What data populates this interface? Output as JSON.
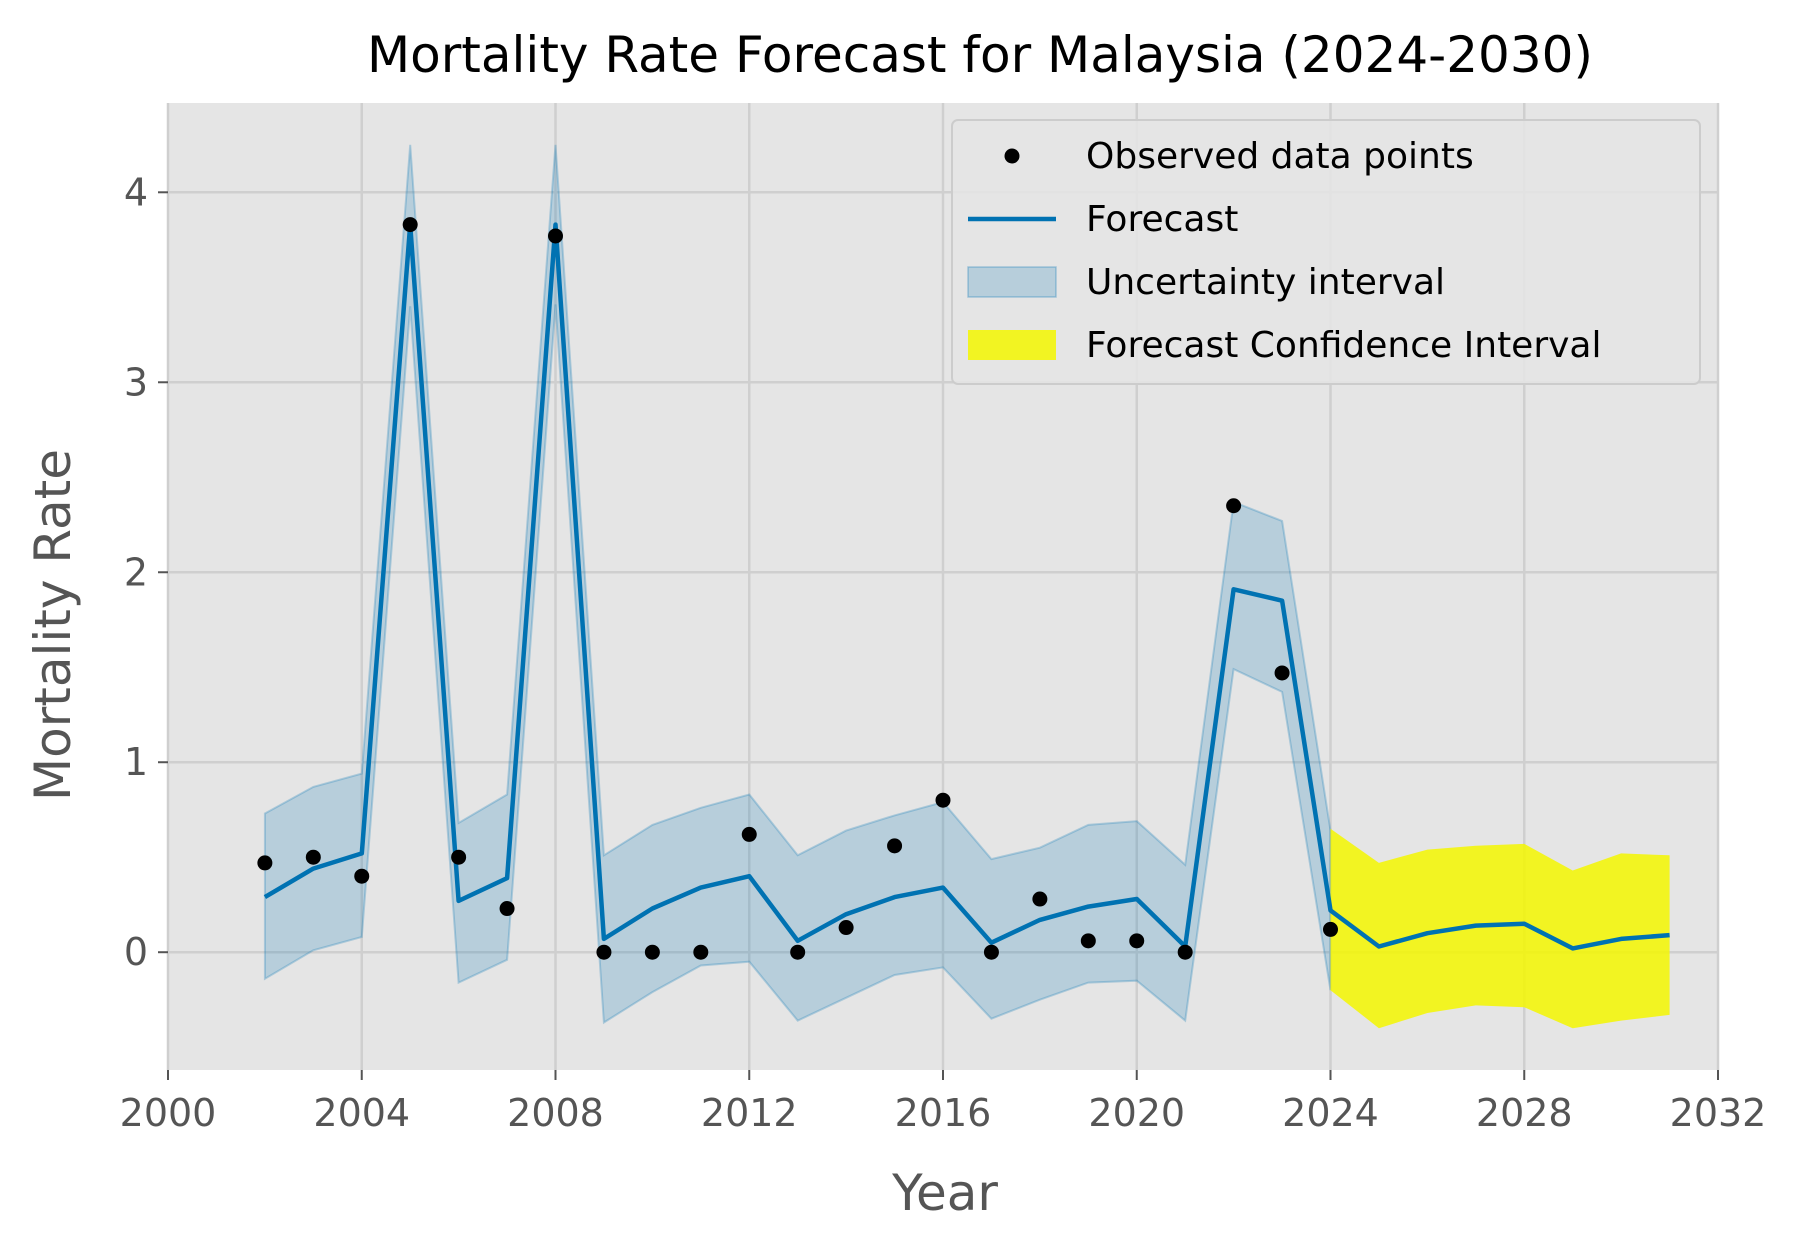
{
  "chart_data": {
    "type": "line",
    "title": "Mortality Rate Forecast for Malaysia (2024-2030)",
    "xlabel": "Year",
    "ylabel": "Mortality Rate",
    "xlim": [
      2000,
      2032
    ],
    "ylim": [
      -0.62,
      4.47
    ],
    "xticks": [
      2000,
      2004,
      2008,
      2012,
      2016,
      2020,
      2024,
      2028,
      2032
    ],
    "yticks": [
      0,
      1,
      2,
      3,
      4
    ],
    "grid": true,
    "legend_position": "top-right",
    "colors": {
      "background": "#e5e5e5",
      "grid": "#cfcfcf",
      "observed": "#000000",
      "forecast": "#0072b2",
      "uncertainty": "#0072b2",
      "forecast_ci": "#f5f700"
    },
    "observed": {
      "name": "Observed data points",
      "x": [
        2002,
        2003,
        2004,
        2005,
        2006,
        2007,
        2008,
        2009,
        2010,
        2011,
        2012,
        2013,
        2014,
        2015,
        2016,
        2017,
        2018,
        2019,
        2020,
        2021,
        2022,
        2023,
        2024
      ],
      "y": [
        0.47,
        0.5,
        0.4,
        3.83,
        0.5,
        0.23,
        3.77,
        0.0,
        0.0,
        0.0,
        0.62,
        0.0,
        0.13,
        0.56,
        0.8,
        0.0,
        0.28,
        0.06,
        0.06,
        0.0,
        2.35,
        1.47,
        0.12
      ]
    },
    "forecast": {
      "name": "Forecast",
      "x": [
        2002,
        2003,
        2004,
        2005,
        2006,
        2007,
        2008,
        2009,
        2010,
        2011,
        2012,
        2013,
        2014,
        2015,
        2016,
        2017,
        2018,
        2019,
        2020,
        2021,
        2022,
        2023,
        2024,
        2025,
        2026,
        2027,
        2028,
        2029,
        2030,
        2031
      ],
      "y": [
        0.29,
        0.44,
        0.52,
        3.83,
        0.27,
        0.39,
        3.83,
        0.07,
        0.23,
        0.34,
        0.4,
        0.06,
        0.2,
        0.29,
        0.34,
        0.05,
        0.17,
        0.24,
        0.28,
        0.03,
        1.91,
        1.85,
        0.22,
        0.03,
        0.1,
        0.14,
        0.15,
        0.02,
        0.07,
        0.09
      ]
    },
    "uncertainty": {
      "name": "Uncertainty interval",
      "x": [
        2002,
        2003,
        2004,
        2005,
        2006,
        2007,
        2008,
        2009,
        2010,
        2011,
        2012,
        2013,
        2014,
        2015,
        2016,
        2017,
        2018,
        2019,
        2020,
        2021,
        2022,
        2023,
        2024
      ],
      "lower": [
        -0.14,
        0.01,
        0.08,
        3.4,
        -0.16,
        -0.04,
        3.41,
        -0.37,
        -0.21,
        -0.07,
        -0.05,
        -0.36,
        -0.24,
        -0.12,
        -0.08,
        -0.35,
        -0.25,
        -0.16,
        -0.15,
        -0.36,
        1.49,
        1.37,
        -0.2
      ],
      "upper": [
        0.73,
        0.87,
        0.94,
        4.25,
        0.68,
        0.83,
        4.25,
        0.51,
        0.67,
        0.76,
        0.83,
        0.51,
        0.64,
        0.72,
        0.79,
        0.49,
        0.55,
        0.67,
        0.69,
        0.46,
        2.37,
        2.27,
        0.64
      ]
    },
    "forecast_ci": {
      "name": "Forecast Confidence Interval",
      "x": [
        2024,
        2025,
        2026,
        2027,
        2028,
        2029,
        2030,
        2031
      ],
      "lower": [
        -0.2,
        -0.4,
        -0.32,
        -0.28,
        -0.29,
        -0.4,
        -0.36,
        -0.33
      ],
      "upper": [
        0.65,
        0.47,
        0.54,
        0.56,
        0.57,
        0.43,
        0.52,
        0.51
      ]
    }
  }
}
